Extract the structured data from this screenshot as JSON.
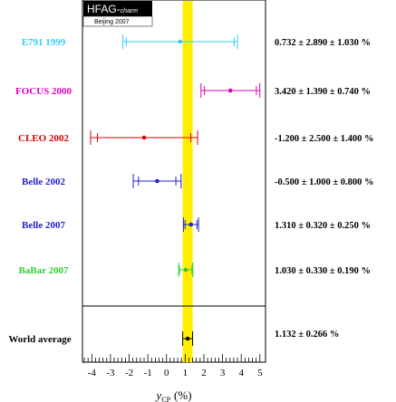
{
  "logo": {
    "main": "HFAG-",
    "sub": "charm",
    "note": "Beijing 2007"
  },
  "chart_data": {
    "type": "scatter",
    "xlabel": "y",
    "xlabel_sub": "CP",
    "xlabel_unit": "(%)",
    "xlim": [
      -4.5,
      5.3
    ],
    "x_ticks": [
      -4,
      -3,
      -2,
      -1,
      0,
      1,
      2,
      3,
      4,
      5
    ],
    "world_average_band": [
      0.866,
      1.398
    ],
    "measurements": [
      {
        "name": "E791 1999",
        "value": 0.732,
        "stat": 2.89,
        "syst": 1.03,
        "label": "0.732 ± 2.890 ± 1.030 %",
        "color": "#33ccff"
      },
      {
        "name": "FOCUS 2000",
        "value": 3.42,
        "stat": 1.39,
        "syst": 0.74,
        "label": "3.420 ± 1.390 ± 0.740 %",
        "color": "#dd00bb"
      },
      {
        "name": "CLEO 2002",
        "value": -1.2,
        "stat": 2.5,
        "syst": 1.4,
        "label": "-1.200 ± 2.500 ± 1.400 %",
        "color": "#dd0000"
      },
      {
        "name": "Belle 2002",
        "value": -0.5,
        "stat": 1.0,
        "syst": 0.8,
        "label": "-0.500 ± 1.000 ± 0.800 %",
        "color": "#2222cc"
      },
      {
        "name": "Belle 2007",
        "value": 1.31,
        "stat": 0.32,
        "syst": 0.25,
        "label": "1.310 ± 0.320 ± 0.250 %",
        "color": "#2222cc"
      },
      {
        "name": "BaBar 2007",
        "value": 1.03,
        "stat": 0.33,
        "syst": 0.19,
        "label": "1.030 ± 0.330 ± 0.190 %",
        "color": "#33cc33"
      }
    ],
    "average": {
      "name": "World average",
      "value": 1.132,
      "error": 0.266,
      "label": "1.132 ± 0.266 %",
      "color": "#000000"
    }
  }
}
